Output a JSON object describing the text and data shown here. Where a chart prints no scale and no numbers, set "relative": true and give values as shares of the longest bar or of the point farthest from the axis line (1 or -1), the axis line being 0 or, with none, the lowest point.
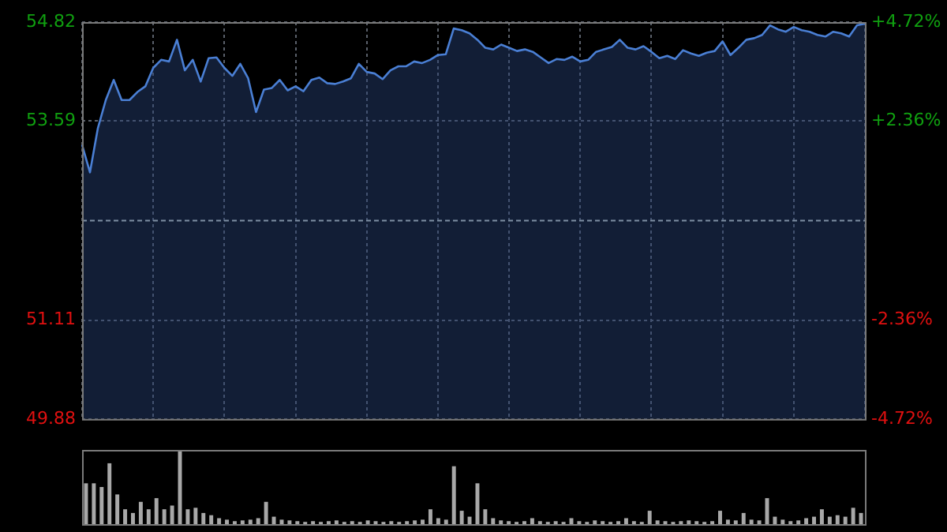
{
  "chart_data": [
    {
      "type": "area",
      "categories": [
        null,
        null,
        null,
        null,
        null,
        null,
        null,
        null,
        null,
        null,
        null,
        null,
        null,
        null,
        null,
        null,
        null,
        null,
        null,
        null,
        null,
        null,
        null,
        null,
        null,
        null,
        null,
        null,
        null,
        null,
        null,
        null,
        null,
        null,
        null,
        null,
        null,
        null,
        null,
        null,
        null,
        null,
        null,
        null,
        null,
        null,
        null,
        null,
        null,
        null,
        null,
        null,
        null,
        null,
        null,
        null,
        null,
        null,
        null,
        null,
        null,
        null,
        null,
        null,
        null,
        null,
        null,
        null,
        null,
        null,
        null,
        null,
        null,
        null,
        null,
        null,
        null,
        null,
        null,
        null,
        null,
        null,
        null,
        null,
        null,
        null,
        null,
        null,
        null,
        null,
        null,
        null,
        null,
        null,
        null,
        null,
        null,
        null,
        null,
        null
      ],
      "series": [
        {
          "color": "#4a7fd4",
          "values": [
            53.29,
            52.95,
            53.5,
            53.85,
            54.1,
            53.85,
            53.85,
            53.95,
            54.02,
            54.25,
            54.35,
            54.33,
            54.6,
            54.22,
            54.35,
            54.08,
            54.37,
            54.38,
            54.25,
            54.15,
            54.3,
            54.12,
            53.7,
            53.98,
            54.0,
            54.1,
            53.97,
            54.02,
            53.96,
            54.1,
            54.13,
            54.06,
            54.05,
            54.08,
            54.12,
            54.3,
            54.2,
            54.18,
            54.11,
            54.22,
            54.27,
            54.27,
            54.33,
            54.31,
            54.35,
            54.41,
            54.42,
            54.74,
            54.72,
            54.68,
            54.6,
            54.5,
            54.48,
            54.54,
            54.5,
            54.46,
            54.48,
            54.45,
            54.38,
            54.31,
            54.36,
            54.35,
            54.39,
            54.33,
            54.35,
            54.45,
            54.48,
            54.51,
            54.6,
            54.5,
            54.48,
            54.52,
            54.45,
            54.37,
            54.4,
            54.36,
            54.47,
            54.43,
            54.4,
            54.44,
            54.46,
            54.58,
            54.41,
            54.5,
            54.6,
            54.62,
            54.66,
            54.78,
            54.73,
            54.7,
            54.76,
            54.72,
            54.7,
            54.66,
            54.64,
            54.7,
            54.68,
            54.64,
            54.78,
            54.8
          ]
        }
      ],
      "ylim": [
        49.88,
        54.82
      ],
      "yticks": [
        49.88,
        51.11,
        53.59,
        54.82
      ],
      "y2lim": [
        -4.72,
        4.72
      ],
      "y2ticks": [
        {
          "value": -4.72,
          "label": "-4.72%"
        },
        {
          "value": -2.36,
          "label": "-2.36%"
        },
        {
          "value": 2.36,
          "label": "+2.36%"
        },
        {
          "value": 4.72,
          "label": "+4.72%"
        }
      ],
      "ref_lines": [
        {
          "axis": "y",
          "value": 52.35,
          "color": "#7f8fa3",
          "line_style": "dashed"
        }
      ],
      "grid": true,
      "tick_labels": "y",
      "legend": false
    },
    {
      "type": "bar",
      "relative": true,
      "categories": [
        null,
        null,
        null,
        null,
        null,
        null,
        null,
        null,
        null,
        null,
        null,
        null,
        null,
        null,
        null,
        null,
        null,
        null,
        null,
        null,
        null,
        null,
        null,
        null,
        null,
        null,
        null,
        null,
        null,
        null,
        null,
        null,
        null,
        null,
        null,
        null,
        null,
        null,
        null,
        null,
        null,
        null,
        null,
        null,
        null,
        null,
        null,
        null,
        null,
        null,
        null,
        null,
        null,
        null,
        null,
        null,
        null,
        null,
        null,
        null,
        null,
        null,
        null,
        null,
        null,
        null,
        null,
        null,
        null,
        null,
        null,
        null,
        null,
        null,
        null,
        null,
        null,
        null,
        null,
        null,
        null,
        null,
        null,
        null,
        null,
        null,
        null,
        null,
        null,
        null,
        null,
        null,
        null,
        null,
        null,
        null,
        null,
        null,
        null,
        null
      ],
      "color": "#a8a8a8",
      "values": [
        0.55,
        0.55,
        0.5,
        0.82,
        0.4,
        0.2,
        0.15,
        0.3,
        0.2,
        0.35,
        0.2,
        0.25,
        1.0,
        0.2,
        0.22,
        0.15,
        0.12,
        0.08,
        0.06,
        0.04,
        0.05,
        0.06,
        0.08,
        0.3,
        0.1,
        0.06,
        0.05,
        0.04,
        0.03,
        0.04,
        0.03,
        0.04,
        0.05,
        0.03,
        0.04,
        0.03,
        0.05,
        0.04,
        0.03,
        0.04,
        0.03,
        0.04,
        0.05,
        0.06,
        0.2,
        0.08,
        0.06,
        0.78,
        0.18,
        0.1,
        0.55,
        0.2,
        0.08,
        0.05,
        0.04,
        0.03,
        0.04,
        0.08,
        0.04,
        0.03,
        0.04,
        0.03,
        0.08,
        0.04,
        0.03,
        0.05,
        0.04,
        0.03,
        0.04,
        0.08,
        0.04,
        0.03,
        0.18,
        0.05,
        0.04,
        0.03,
        0.04,
        0.05,
        0.04,
        0.03,
        0.04,
        0.18,
        0.06,
        0.05,
        0.15,
        0.06,
        0.05,
        0.35,
        0.1,
        0.06,
        0.04,
        0.05,
        0.08,
        0.1,
        0.2,
        0.1,
        0.12,
        0.1,
        0.22,
        0.15
      ],
      "legend": false
    }
  ]
}
